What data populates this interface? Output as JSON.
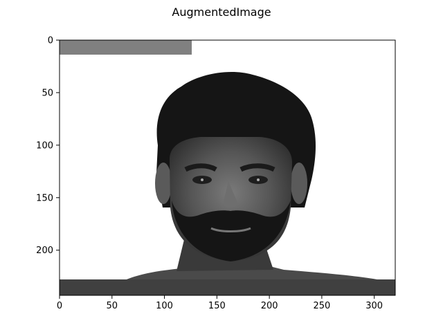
{
  "figure": {
    "title": "AugmentedImage"
  },
  "axes": {
    "x_ticks": [
      "0",
      "50",
      "100",
      "150",
      "200",
      "250",
      "300"
    ],
    "x_tick_values": [
      0,
      50,
      100,
      150,
      200,
      250,
      300
    ],
    "y_ticks": [
      "0",
      "50",
      "100",
      "150",
      "200"
    ],
    "y_tick_values": [
      0,
      50,
      100,
      150,
      200
    ],
    "x_range": [
      0,
      320
    ],
    "y_range": [
      0,
      243
    ],
    "y_inverted": true
  },
  "image": {
    "mode": "grayscale",
    "subject": "face-photo",
    "top_bar_color": "#808080",
    "bottom_bar_color": "#404040"
  }
}
